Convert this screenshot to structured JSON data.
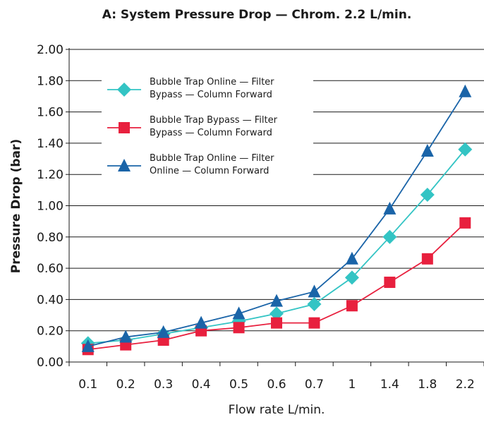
{
  "chart_data": {
    "type": "line",
    "title": "A: System Pressure Drop — Chrom. 2.2 L/min.",
    "xlabel": "Flow rate L/min.",
    "ylabel": "Pressure Drop (bar)",
    "categories": [
      "0.1",
      "0.2",
      "0.3",
      "0.4",
      "0.5",
      "0.6",
      "0.7",
      "1",
      "1.4",
      "1.8",
      "2.2"
    ],
    "ylim": [
      0,
      2.0
    ],
    "yticks": [
      "0.00",
      "0.20",
      "0.40",
      "0.60",
      "0.80",
      "1.00",
      "1.20",
      "1.40",
      "1.60",
      "1.80",
      "2.00"
    ],
    "grid": "horizontal",
    "legend": "top-left",
    "series": [
      {
        "name": "Bubble Trap Online — Filter Bypass — Column Forward",
        "name_lines": [
          "Bubble Trap Online — Filter",
          "Bypass — Column Forward"
        ],
        "marker": "diamond",
        "color": "#33c4c4",
        "values": [
          0.12,
          0.14,
          0.18,
          0.22,
          0.26,
          0.31,
          0.37,
          0.54,
          0.8,
          1.07,
          1.36
        ]
      },
      {
        "name": "Bubble Trap Bypass — Filter Bypass — Column Forward",
        "name_lines": [
          "Bubble Trap Bypass — Filter",
          "Bypass — Column Forward"
        ],
        "marker": "square",
        "color": "#e8203e",
        "values": [
          0.08,
          0.11,
          0.14,
          0.2,
          0.22,
          0.25,
          0.25,
          0.36,
          0.51,
          0.66,
          0.89
        ]
      },
      {
        "name": "Bubble Trap Online — Filter Online — Column Forward",
        "name_lines": [
          "Bubble Trap Online — Filter",
          "Online — Column Forward"
        ],
        "marker": "triangle",
        "color": "#1a64a8",
        "values": [
          0.1,
          0.16,
          0.19,
          0.25,
          0.31,
          0.39,
          0.45,
          0.66,
          0.98,
          1.35,
          1.73
        ]
      }
    ]
  }
}
